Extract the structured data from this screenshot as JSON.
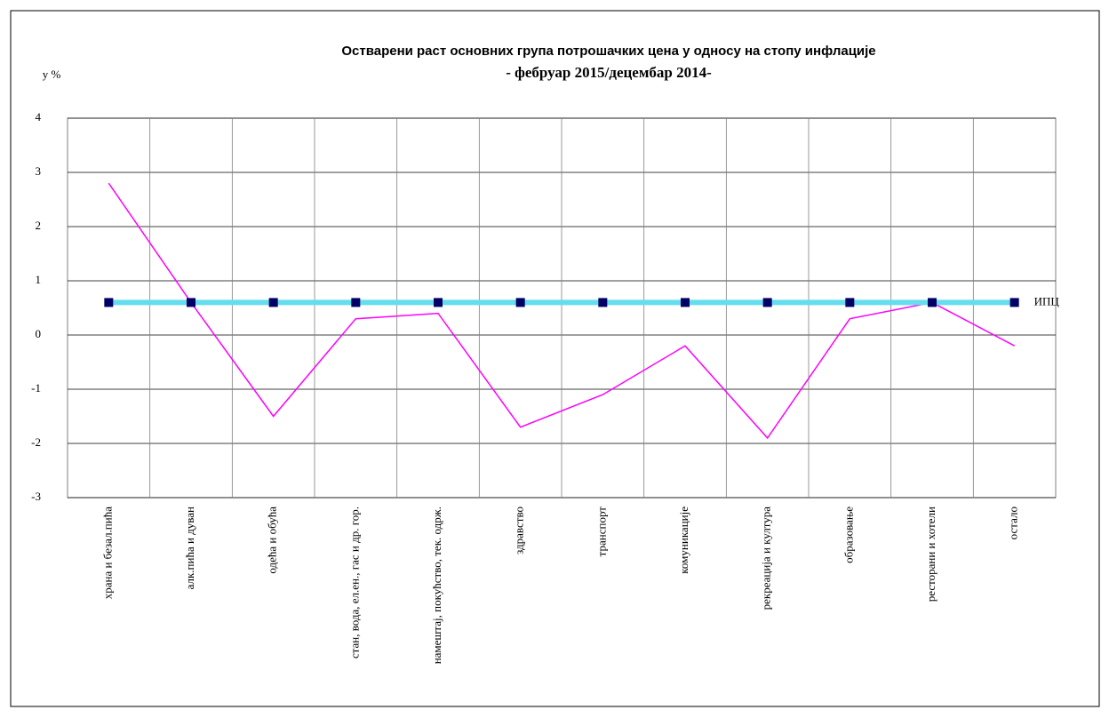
{
  "chart_data": {
    "type": "line",
    "title": "Остварени раст основних група потрошачких цена у односу на стопу инфлације",
    "subtitle": "- фебруар 2015/децембар 2014-",
    "y_label": "у %",
    "categories": [
      "храна и безал.пића",
      "алк.пића и дуван",
      "одећа и обућа",
      "стан, вода, ел.ен., гас и др. гор.",
      "намештај, покућство, тек. одрж.",
      "здравство",
      "транспорт",
      "комуникације",
      "рекреација и култура",
      "образовање",
      "ресторани и хотели",
      "остало"
    ],
    "series": [
      {
        "color": "#ff00ff",
        "values": [
          2.8,
          0.6,
          -1.5,
          0.3,
          0.4,
          -1.7,
          -1.1,
          -0.2,
          -1.9,
          0.3,
          0.6,
          -0.2
        ]
      },
      {
        "name": "ИПЦ",
        "color": "#66ddee",
        "marker_color": "#000066",
        "values": [
          0.6,
          0.6,
          0.6,
          0.6,
          0.6,
          0.6,
          0.6,
          0.6,
          0.6,
          0.6,
          0.6,
          0.6
        ]
      }
    ],
    "ylim": [
      -3,
      4
    ],
    "yticks": [
      -3,
      -2,
      -1,
      0,
      1,
      2,
      3,
      4
    ],
    "grid": true
  }
}
